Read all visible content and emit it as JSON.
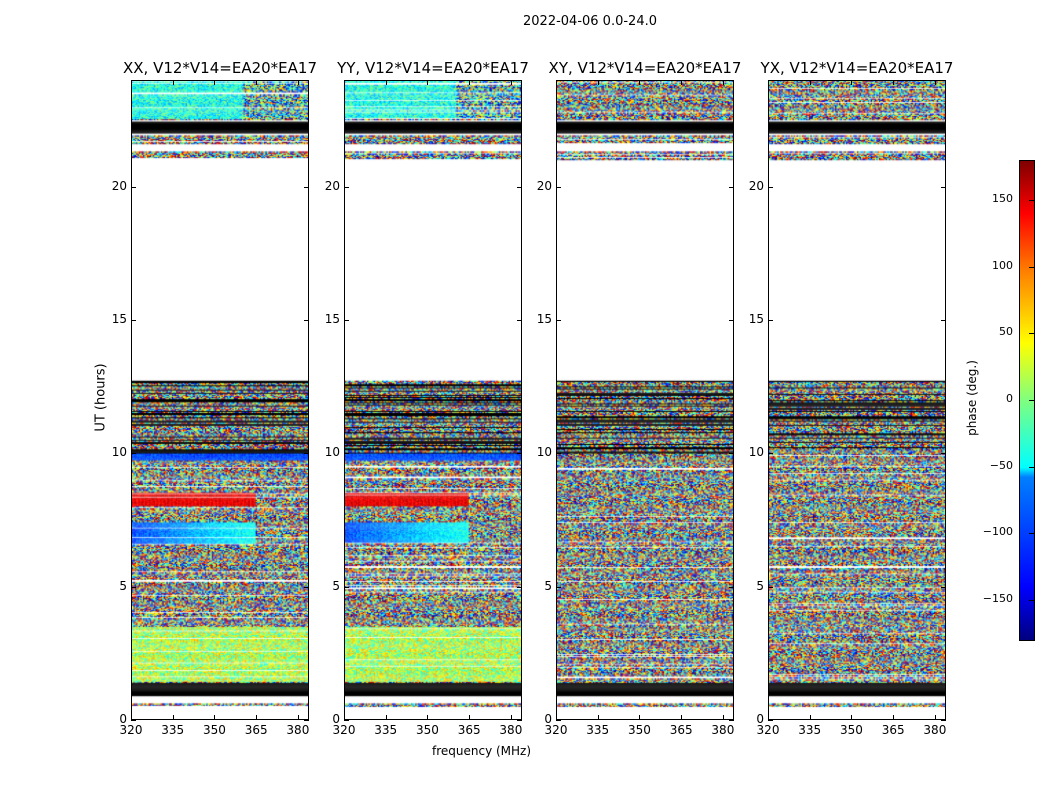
{
  "figure": {
    "suptitle": "2022-04-06 0.0-24.0",
    "ylabel": "UT (hours)",
    "xlabel": "frequency (MHz)"
  },
  "chart_data": {
    "type": "heatmap",
    "title": "2022-04-06 0.0-24.0",
    "xlabel": "frequency (MHz)",
    "ylabel": "UT (hours)",
    "xlim": [
      320,
      384
    ],
    "ylim": [
      0,
      24
    ],
    "xticks": [
      "320",
      "335",
      "350",
      "365",
      "380"
    ],
    "yticks": [
      "0",
      "5",
      "10",
      "15",
      "20"
    ],
    "panels": [
      {
        "title": "XX, V12*V14=EA20*EA17",
        "coherent": true
      },
      {
        "title": "YY, V12*V14=EA20*EA17",
        "coherent": true
      },
      {
        "title": "XY, V12*V14=EA20*EA17",
        "coherent": false
      },
      {
        "title": "YX, V12*V14=EA20*EA17",
        "coherent": false
      }
    ],
    "time_bands": [
      {
        "start": 0.5,
        "end": 0.62,
        "kind": "data"
      },
      {
        "start": 0.9,
        "end": 1.4,
        "kind": "flagged"
      },
      {
        "start": 1.4,
        "end": 3.5,
        "kind": "data"
      },
      {
        "start": 3.5,
        "end": 5.9,
        "kind": "data"
      },
      {
        "start": 5.9,
        "end": 9.7,
        "kind": "data"
      },
      {
        "start": 9.7,
        "end": 10.0,
        "kind": "data"
      },
      {
        "start": 10.0,
        "end": 12.7,
        "kind": "mixed"
      },
      {
        "start": 21.0,
        "end": 21.3,
        "kind": "data"
      },
      {
        "start": 21.6,
        "end": 21.9,
        "kind": "data"
      },
      {
        "start": 22.0,
        "end": 22.4,
        "kind": "flagged"
      },
      {
        "start": 22.5,
        "end": 24.0,
        "kind": "data"
      }
    ],
    "colorbar": {
      "label": "phase (deg.)",
      "range": [
        -180,
        180
      ],
      "ticks": [
        "150",
        "100",
        "50",
        "0",
        "−50",
        "−100",
        "−150"
      ],
      "colormap": "jet"
    }
  }
}
